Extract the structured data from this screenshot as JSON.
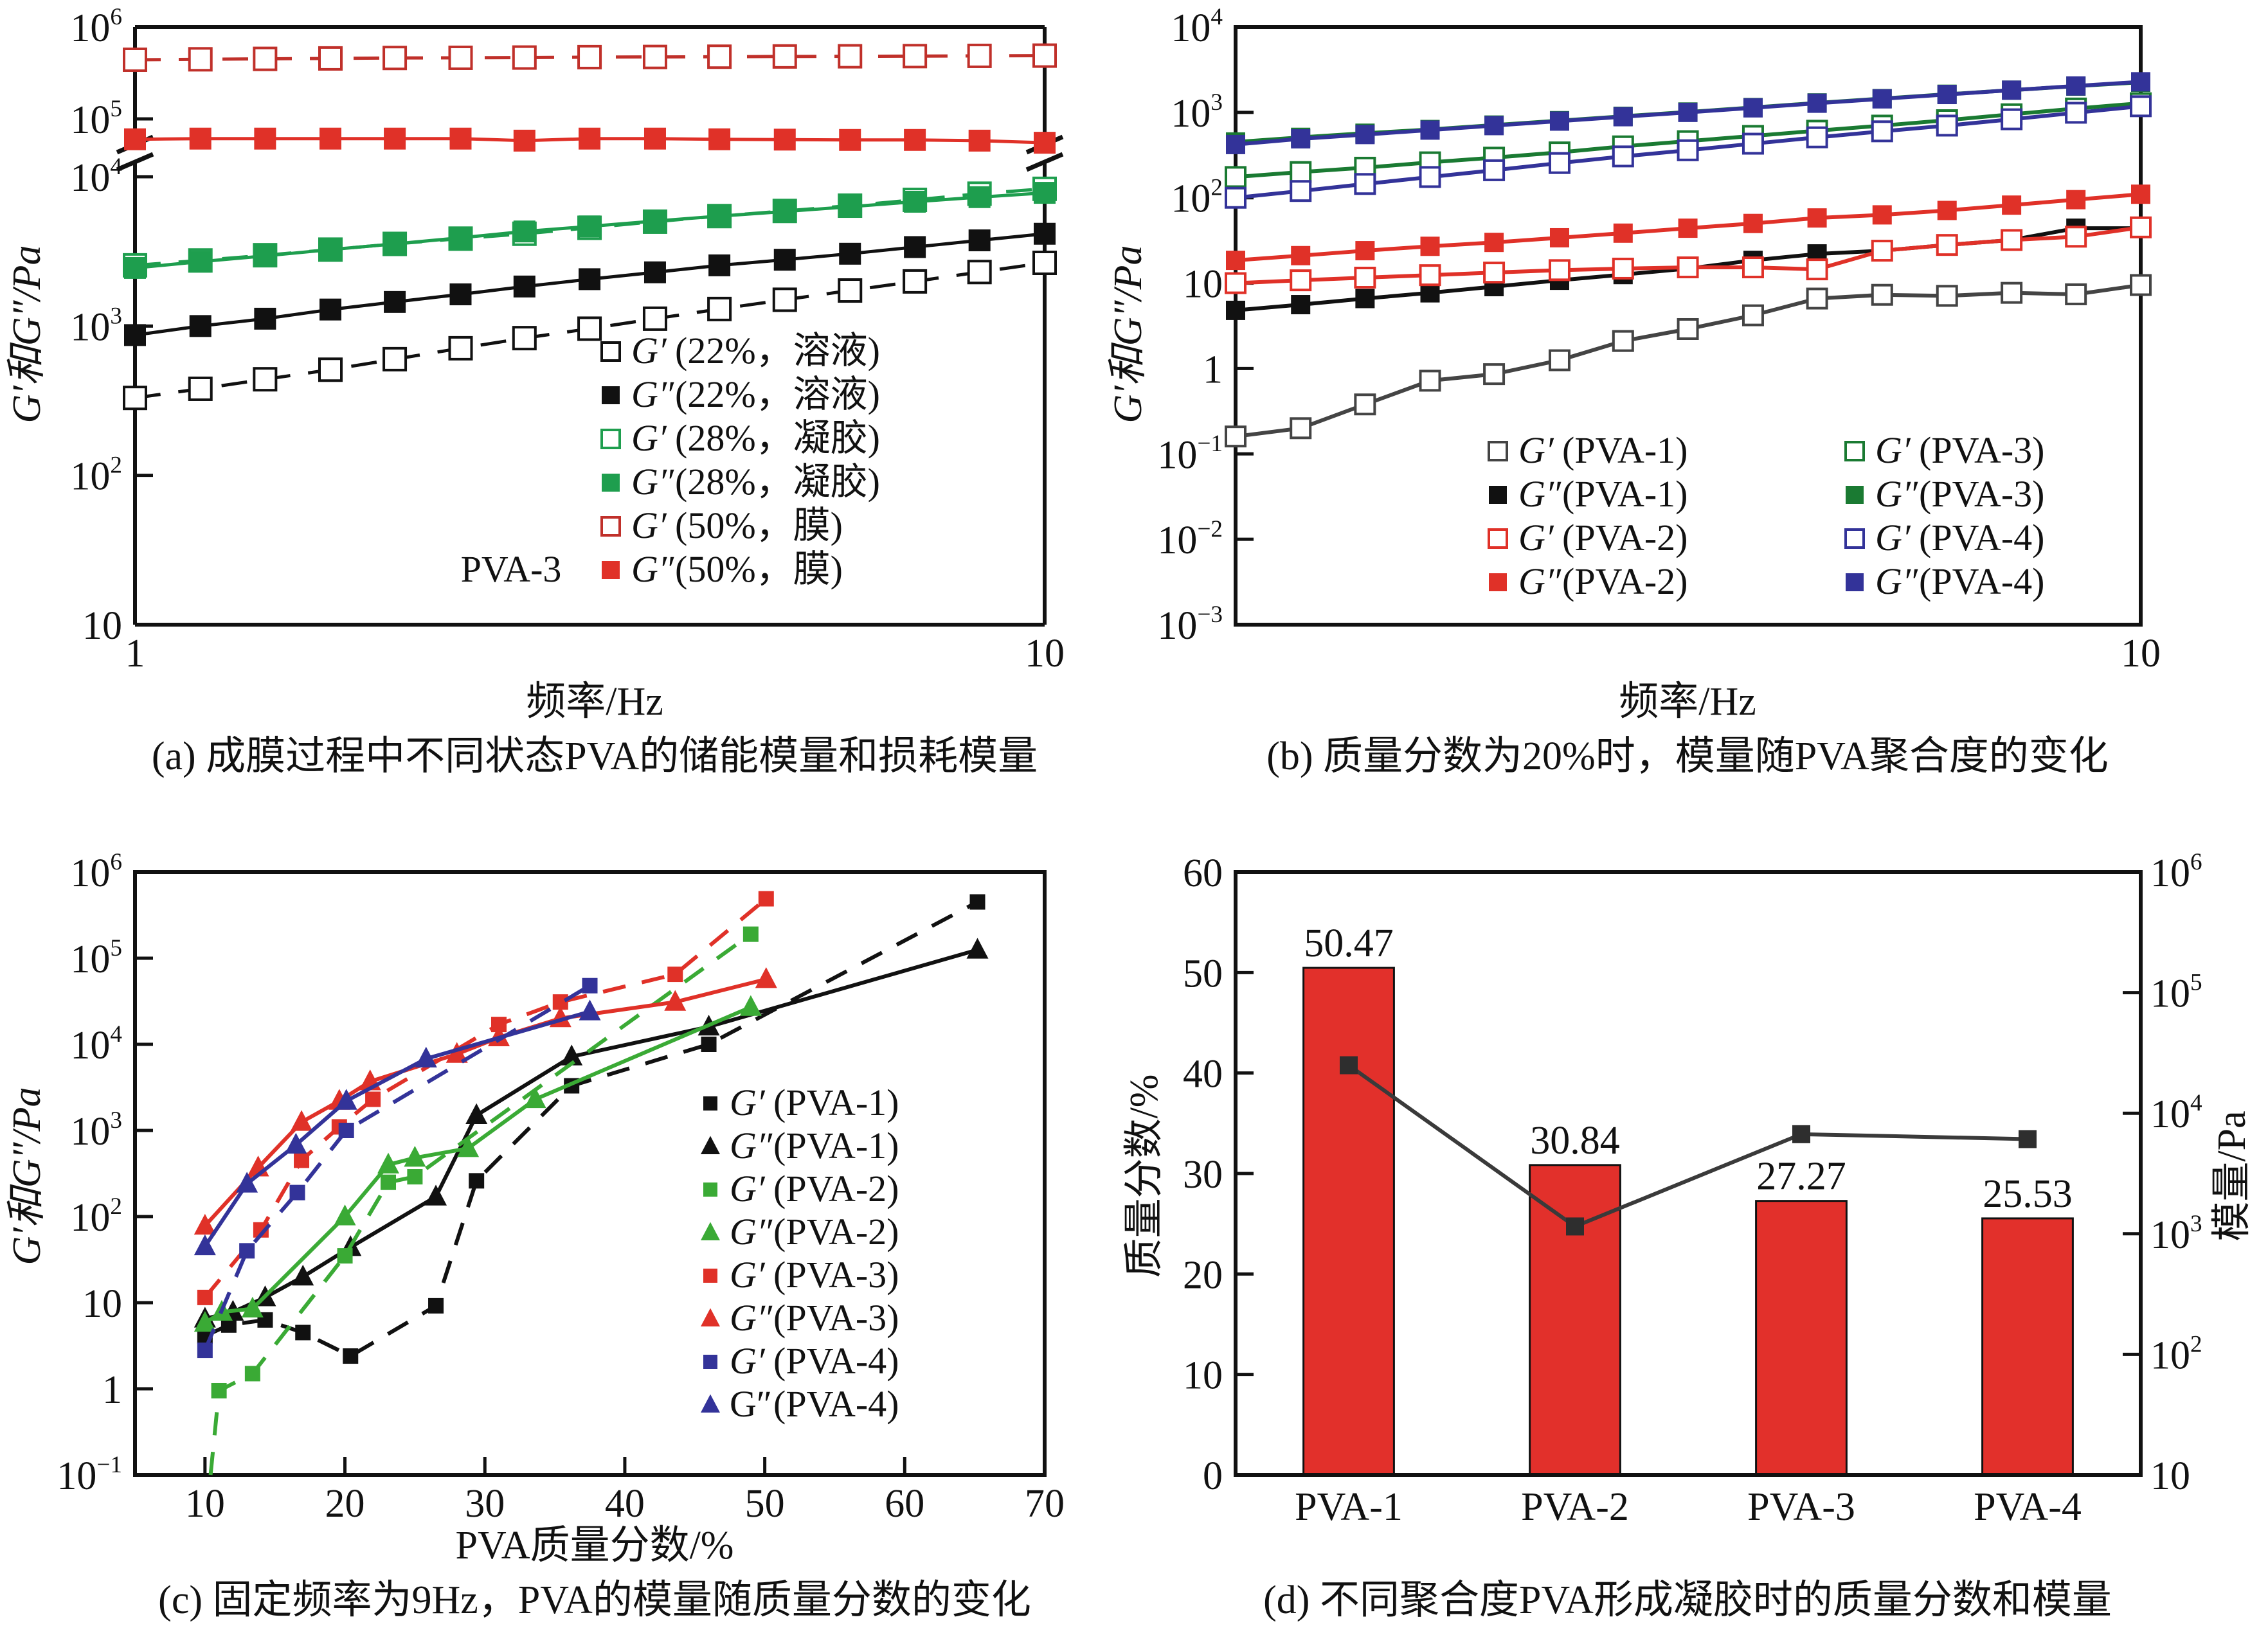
{
  "colors": {
    "black": "#111111",
    "gray": "#444444",
    "green": "#1e9e4e",
    "red": "#e03128",
    "darkred": "#c0302a",
    "pva2green": "#3aaa35",
    "pva3green": "#1a7a32",
    "purple": "#333399",
    "bar": "#e2302b"
  },
  "chart_data": [
    {
      "id": "a",
      "type": "line",
      "caption": "(a) 成膜过程中不同状态PVA的储能模量和损耗模量",
      "xlabel": "频率/Hz",
      "ylabel": "G′和G″/Pa",
      "xscale": "log",
      "yscale": "log-broken",
      "xlim": [
        1,
        10
      ],
      "ylim_lower": [
        10,
        10000
      ],
      "ylim_upper": [
        60000,
        1000000
      ],
      "axis_break": true,
      "xticks": [
        {
          "v": 1,
          "label": "1"
        },
        {
          "v": 10,
          "label": "10"
        }
      ],
      "yticks": [
        {
          "v": 10,
          "base": "10",
          "exp": ""
        },
        {
          "v": 100,
          "base": "10",
          "exp": "2"
        },
        {
          "v": 1000,
          "base": "10",
          "exp": "3"
        },
        {
          "v": 10000,
          "base": "10",
          "exp": "4"
        },
        {
          "v": 100000,
          "base": "10",
          "exp": "5"
        },
        {
          "v": 1000000,
          "base": "10",
          "exp": "6"
        }
      ],
      "annotation": "PVA-3",
      "legend_position": "bottom-right",
      "x": [
        1,
        1.18,
        1.39,
        1.64,
        1.93,
        2.28,
        2.68,
        3.16,
        3.73,
        4.39,
        5.18,
        6.11,
        7.2,
        8.48,
        10
      ],
      "series": [
        {
          "name": "G′(22%，溶液)",
          "sym": "G′",
          "tag": "(22%，溶液)",
          "color": "black",
          "marker": "open",
          "dash": true,
          "values": [
            330,
            380,
            440,
            510,
            600,
            710,
            830,
            960,
            1120,
            1300,
            1500,
            1730,
            1990,
            2300,
            2650
          ]
        },
        {
          "name": "G″(22%，溶液)",
          "sym": "G″",
          "tag": "(22%，溶液)",
          "color": "black",
          "marker": "filled",
          "dash": false,
          "values": [
            870,
            1000,
            1120,
            1290,
            1450,
            1630,
            1840,
            2060,
            2290,
            2550,
            2780,
            3050,
            3380,
            3750,
            4150
          ]
        },
        {
          "name": "G′(28%，凝胶)",
          "sym": "G′",
          "tag": "(28%，凝胶)",
          "color": "green",
          "marker": "open",
          "dash": true,
          "values": [
            2550,
            2750,
            2980,
            3250,
            3550,
            3850,
            4150,
            4550,
            5000,
            5450,
            5900,
            6400,
            7000,
            7700,
            8300
          ]
        },
        {
          "name": "G″(28%，凝胶)",
          "sym": "G″",
          "tag": "(28%，凝胶)",
          "color": "green",
          "marker": "filled",
          "dash": false,
          "values": [
            2450,
            2700,
            2950,
            3250,
            3550,
            3900,
            4300,
            4650,
            5050,
            5450,
            5850,
            6300,
            6800,
            7300,
            7800
          ]
        },
        {
          "name": "G′(50%，膜)",
          "sym": "G′",
          "tag": "(50%，膜)",
          "color": "darkred",
          "marker": "open",
          "dash": true,
          "values": [
            440000,
            445000,
            450000,
            455000,
            460000,
            462000,
            465000,
            470000,
            472000,
            475000,
            478000,
            480000,
            482000,
            485000,
            488000
          ]
        },
        {
          "name": "G″(50%，膜)",
          "sym": "G″",
          "tag": "(50%，膜)",
          "color": "red",
          "marker": "filled",
          "dash": false,
          "values": [
            60000,
            61000,
            61000,
            61000,
            61000,
            61000,
            58000,
            61000,
            61000,
            60000,
            59500,
            59000,
            59000,
            58000,
            55000
          ]
        }
      ]
    },
    {
      "id": "b",
      "type": "line",
      "caption": "(b) 质量分数为20%时，模量随PVA聚合度的变化",
      "xlabel": "频率/Hz",
      "ylabel": "G′和G″/Pa",
      "xscale": "log",
      "yscale": "log",
      "xlim": [
        1,
        10
      ],
      "ylim": [
        0.001,
        10000
      ],
      "xticks": [
        {
          "v": 10,
          "label": "10"
        }
      ],
      "yticks": [
        {
          "v": 0.001,
          "base": "10",
          "exp": "−3"
        },
        {
          "v": 0.01,
          "base": "10",
          "exp": "−2"
        },
        {
          "v": 0.1,
          "base": "10",
          "exp": "−1"
        },
        {
          "v": 1,
          "base": "1",
          "exp": ""
        },
        {
          "v": 10,
          "base": "10",
          "exp": ""
        },
        {
          "v": 100,
          "base": "10",
          "exp": "2"
        },
        {
          "v": 1000,
          "base": "10",
          "exp": "3"
        },
        {
          "v": 10000,
          "base": "10",
          "exp": "4"
        }
      ],
      "legend_position": "bottom-center (two columns)",
      "x": [
        1,
        1.18,
        1.39,
        1.64,
        1.93,
        2.28,
        2.68,
        3.16,
        3.73,
        4.39,
        5.18,
        6.11,
        7.2,
        8.48,
        10
      ],
      "series": [
        {
          "name": "G′(PVA-1)",
          "sym": "G′",
          "tag": "(PVA-1)",
          "color": "gray",
          "marker": "open",
          "values": [
            0.16,
            0.2,
            0.38,
            0.72,
            0.86,
            1.25,
            2.1,
            2.9,
            4.2,
            6.6,
            7.3,
            7.1,
            7.7,
            7.4,
            9.5
          ]
        },
        {
          "name": "G″(PVA-1)",
          "sym": "G″",
          "tag": "(PVA-1)",
          "color": "black",
          "marker": "filled",
          "values": [
            4.8,
            5.6,
            6.6,
            7.7,
            9.1,
            10.8,
            12.6,
            14.8,
            18.5,
            22,
            24,
            28,
            32,
            44,
            44
          ]
        },
        {
          "name": "G′(PVA-2)",
          "sym": "G′",
          "tag": "(PVA-2)",
          "color": "red",
          "marker": "open",
          "values": [
            10,
            10.8,
            11.6,
            12.4,
            13.3,
            14.2,
            14.8,
            15.3,
            15.3,
            14.5,
            24,
            28,
            32,
            35,
            45
          ]
        },
        {
          "name": "G″(PVA-2)",
          "sym": "G″",
          "tag": "(PVA-2)",
          "color": "red",
          "marker": "filled",
          "values": [
            18.5,
            21,
            24,
            27,
            30,
            34,
            38.5,
            44,
            50,
            58,
            63,
            71,
            82,
            95,
            110
          ]
        },
        {
          "name": "G′(PVA-3)",
          "sym": "G′",
          "tag": "(PVA-3)",
          "color": "pva3green",
          "marker": "open",
          "values": [
            175,
            200,
            225,
            260,
            295,
            340,
            400,
            460,
            530,
            610,
            700,
            810,
            950,
            1110,
            1280
          ]
        },
        {
          "name": "G″(PVA-3)",
          "sym": "G″",
          "tag": "(PVA-3)",
          "color": "pva3green",
          "marker": "filled",
          "values": [
            450,
            510,
            570,
            630,
            710,
            800,
            900,
            1010,
            1140,
            1290,
            1450,
            1630,
            1820,
            2030,
            2250
          ]
        },
        {
          "name": "G′(PVA-4)",
          "sym": "G′",
          "tag": "(PVA-4)",
          "color": "purple",
          "marker": "open",
          "values": [
            100,
            120,
            145,
            175,
            210,
            255,
            305,
            360,
            430,
            510,
            600,
            700,
            830,
            990,
            1180
          ]
        },
        {
          "name": "G″(PVA-4)",
          "sym": "G″",
          "tag": "(PVA-4)",
          "color": "purple",
          "marker": "filled",
          "values": [
            420,
            490,
            550,
            620,
            700,
            790,
            890,
            1000,
            1130,
            1280,
            1440,
            1620,
            1820,
            2040,
            2280
          ]
        }
      ]
    },
    {
      "id": "c",
      "type": "line",
      "caption": "(c) 固定频率为9Hz，PVA的模量随质量分数的变化",
      "xlabel": "PVA质量分数/%",
      "ylabel": "G′和G″/Pa",
      "xscale": "linear",
      "yscale": "log",
      "xlim": [
        5,
        70
      ],
      "ylim": [
        0.1,
        1000000
      ],
      "xticks": [
        {
          "v": 10,
          "label": "10"
        },
        {
          "v": 20,
          "label": "20"
        },
        {
          "v": 30,
          "label": "30"
        },
        {
          "v": 40,
          "label": "40"
        },
        {
          "v": 50,
          "label": "50"
        },
        {
          "v": 60,
          "label": "60"
        },
        {
          "v": 70,
          "label": "70"
        }
      ],
      "yticks": [
        {
          "v": 0.1,
          "base": "10",
          "exp": "−1"
        },
        {
          "v": 1,
          "base": "1",
          "exp": ""
        },
        {
          "v": 10,
          "base": "10",
          "exp": ""
        },
        {
          "v": 100,
          "base": "10",
          "exp": "2"
        },
        {
          "v": 1000,
          "base": "10",
          "exp": "3"
        },
        {
          "v": 10000,
          "base": "10",
          "exp": "4"
        },
        {
          "v": 100000,
          "base": "10",
          "exp": "5"
        },
        {
          "v": 1000000,
          "base": "10",
          "exp": "6"
        }
      ],
      "legend_position": "right",
      "series": [
        {
          "name": "G′(PVA-1)",
          "sym": "G′",
          "tag": "(PVA-1)",
          "color": "black",
          "marker": "square",
          "dash": true,
          "x": [
            10,
            11.7,
            14.3,
            17,
            20.4,
            26.5,
            29.4,
            36.2,
            46,
            65.2
          ],
          "values": [
            4.1,
            5.5,
            6.3,
            4.5,
            2.4,
            9.2,
            260,
            3300,
            10000,
            450000
          ]
        },
        {
          "name": "G″(PVA-1)",
          "sym": "G″",
          "tag": "(PVA-1)",
          "color": "black",
          "marker": "triangle",
          "dash": false,
          "x": [
            10,
            12,
            14.3,
            17,
            20.4,
            26.5,
            29.4,
            36.2,
            46,
            65.2
          ],
          "values": [
            6.5,
            7.8,
            11.5,
            20,
            44,
            170,
            1500,
            7200,
            16000,
            125000
          ]
        },
        {
          "name": "G′(PVA-2)",
          "sym": "G′",
          "tag": "(PVA-2)",
          "color": "pva2green",
          "marker": "square",
          "dash": true,
          "x": [
            10.4,
            11,
            13.4,
            20,
            23.1,
            25,
            49
          ],
          "values": [
            0.1,
            0.95,
            1.5,
            35,
            250,
            290,
            190000
          ]
        },
        {
          "name": "G″(PVA-2)",
          "sym": "G″",
          "tag": "(PVA-2)",
          "color": "pva2green",
          "marker": "triangle",
          "dash": false,
          "x": [
            10,
            11.2,
            13.4,
            20,
            23.1,
            25,
            28.8,
            33.6,
            49
          ],
          "values": [
            5.8,
            7.8,
            8.5,
            100,
            400,
            480,
            620,
            2300,
            27000
          ]
        },
        {
          "name": "G′(PVA-3)",
          "sym": "G′",
          "tag": "(PVA-3)",
          "color": "red",
          "marker": "square",
          "dash": true,
          "x": [
            10,
            14,
            16.9,
            19.6,
            22,
            31,
            35.4,
            43.6,
            50.1
          ],
          "values": [
            11.5,
            70,
            450,
            1100,
            2300,
            17000,
            31000,
            65000,
            490000
          ]
        },
        {
          "name": "G″(PVA-3)",
          "sym": "G″",
          "tag": "(PVA-3)",
          "color": "red",
          "marker": "triangle",
          "dash": false,
          "x": [
            10,
            13.8,
            16.9,
            19.6,
            21.8,
            28,
            31,
            35.4,
            43.6,
            50.1
          ],
          "values": [
            78,
            370,
            1250,
            2200,
            3700,
            7700,
            12000,
            20000,
            31000,
            57000
          ]
        },
        {
          "name": "G′(PVA-4)",
          "sym": "G′",
          "tag": "(PVA-4)",
          "color": "purple",
          "marker": "square",
          "dash": true,
          "x": [
            10,
            13,
            16.6,
            20.1,
            37.5
          ],
          "values": [
            2.8,
            40,
            190,
            1000,
            48000
          ]
        },
        {
          "name": "G″(PVA-4)",
          "sym": "G″",
          "tag": "(PVA-4)",
          "color": "purple",
          "marker": "triangle",
          "dash": false,
          "x": [
            10,
            13,
            16.5,
            20.1,
            25.8,
            37.5
          ],
          "values": [
            45,
            240,
            680,
            2200,
            6800,
            24000
          ]
        }
      ],
      "legend_last_sym_upright": true
    },
    {
      "id": "d",
      "type": "bar",
      "caption": "(d) 不同聚合度PVA形成凝胶时的质量分数和模量",
      "ylabel": "质量分数/%",
      "y2label": "模量/Pa",
      "categories": [
        "PVA-1",
        "PVA-2",
        "PVA-3",
        "PVA-4"
      ],
      "values": [
        50.47,
        30.84,
        27.27,
        25.53
      ],
      "data_labels": [
        "50.47",
        "30.84",
        "27.27",
        "25.53"
      ],
      "ylim": [
        0,
        60
      ],
      "yticks": [
        0,
        10,
        20,
        30,
        40,
        50,
        60
      ],
      "y2scale": "log",
      "y2lim": [
        10,
        1000000
      ],
      "y2ticks": [
        {
          "v": 10,
          "base": "10",
          "exp": ""
        },
        {
          "v": 100,
          "base": "10",
          "exp": "2"
        },
        {
          "v": 1000,
          "base": "10",
          "exp": "3"
        },
        {
          "v": 10000,
          "base": "10",
          "exp": "4"
        },
        {
          "v": 100000,
          "base": "10",
          "exp": "5"
        },
        {
          "v": 1000000,
          "base": "10",
          "exp": "6"
        }
      ],
      "line_series": {
        "name": "模量",
        "axis": "right",
        "values": [
          25000,
          1150,
          6700,
          6100
        ]
      }
    }
  ]
}
